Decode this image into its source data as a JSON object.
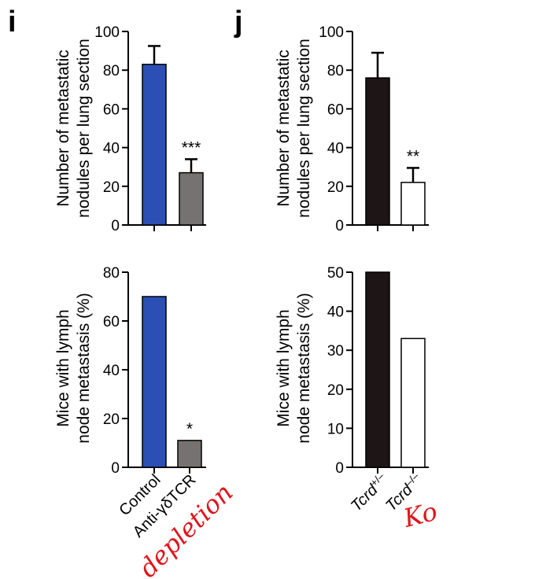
{
  "panels": {
    "left": "i",
    "right": "j"
  },
  "annotations": {
    "left": "depletion",
    "right": "Ko"
  },
  "chart_data": [
    {
      "id": "i-top",
      "type": "bar",
      "ylabel": [
        "Number of metastatic",
        "nodules per lung section"
      ],
      "ylim": [
        0,
        100
      ],
      "yticks": [
        0,
        20,
        40,
        60,
        80,
        100
      ],
      "categories": [
        "Control",
        "Anti-γδTCR"
      ],
      "values": [
        83,
        27
      ],
      "errors": [
        9.5,
        7
      ],
      "colors": [
        "#2b4fb5",
        "#767272"
      ],
      "significance": [
        "",
        "***"
      ]
    },
    {
      "id": "j-top",
      "type": "bar",
      "ylabel": [
        "Number of metastatic",
        "nodules per lung section"
      ],
      "ylim": [
        0,
        100
      ],
      "yticks": [
        0,
        20,
        40,
        60,
        80,
        100
      ],
      "categories": [
        "Tcrd+/–",
        "Tcrd–/–"
      ],
      "values": [
        76,
        22
      ],
      "errors": [
        13,
        7.5
      ],
      "colors": [
        "#1e1616",
        "#ffffff"
      ],
      "significance": [
        "",
        "**"
      ]
    },
    {
      "id": "i-bottom",
      "type": "bar",
      "ylabel": [
        "Mice with lymph",
        "node metastasis (%)"
      ],
      "ylim": [
        0,
        80
      ],
      "yticks": [
        0,
        20,
        40,
        60,
        80
      ],
      "categories": [
        "Control",
        "Anti-γδTCR"
      ],
      "values": [
        70,
        11
      ],
      "errors": [
        0,
        0
      ],
      "colors": [
        "#2b4fb5",
        "#767272"
      ],
      "significance": [
        "",
        "*"
      ]
    },
    {
      "id": "j-bottom",
      "type": "bar",
      "ylabel": [
        "Mice with lymph",
        "node metastasis (%)"
      ],
      "ylim": [
        0,
        50
      ],
      "yticks": [
        0,
        10,
        20,
        30,
        40,
        50
      ],
      "categories": [
        "Tcrd+/–",
        "Tcrd–/–"
      ],
      "values": [
        50,
        33
      ],
      "errors": [
        0,
        0
      ],
      "colors": [
        "#1e1616",
        "#ffffff"
      ],
      "significance": [
        "",
        ""
      ]
    }
  ],
  "x_categories": {
    "left": [
      "Control",
      "Anti-γδTCR"
    ],
    "right": [
      {
        "base": "Tcrd",
        "sup": "+/–"
      },
      {
        "base": "Tcrd",
        "sup": "–/–"
      }
    ]
  }
}
